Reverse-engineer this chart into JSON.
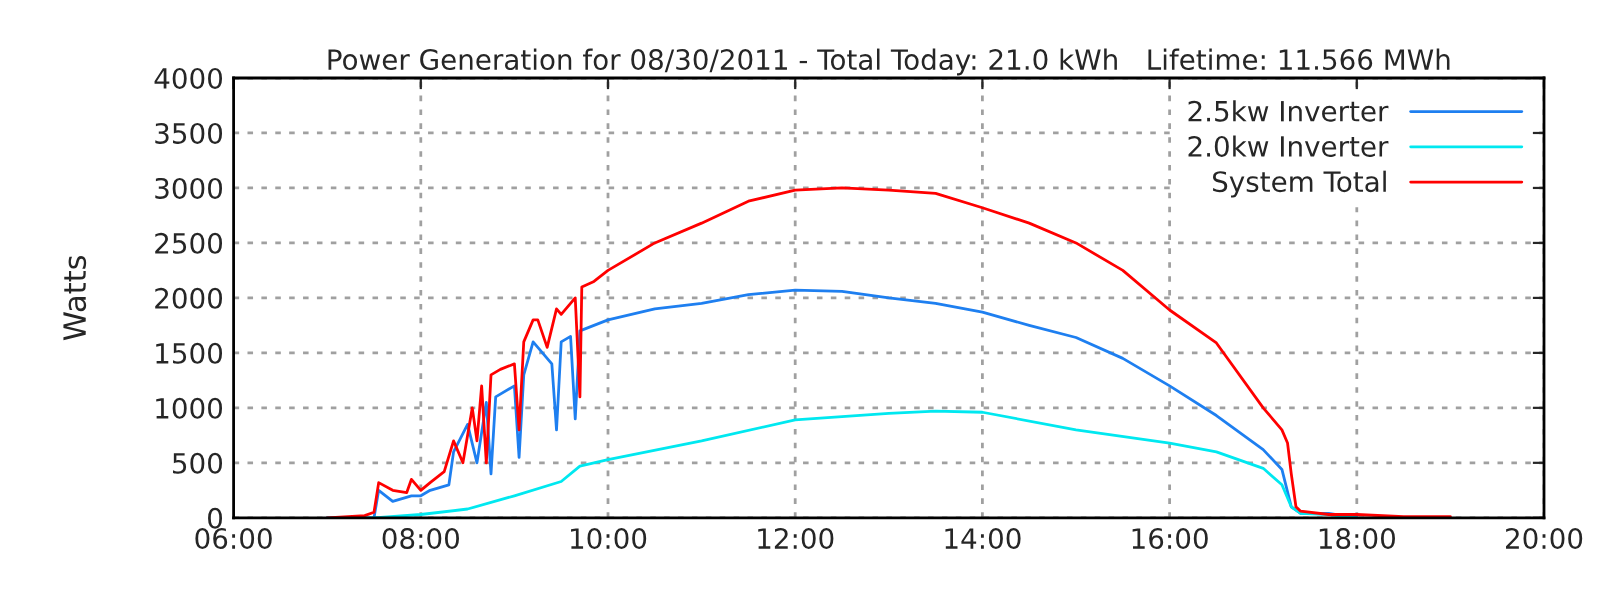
{
  "chart_data": {
    "type": "line",
    "title": "Power Generation for 08/30/2011 - Total Today: 21.0 kWh   Lifetime: 11.566 MWh",
    "ylabel": "Watts",
    "series": [
      {
        "name": "2.5kw Inverter",
        "color": "#1e7ff0",
        "x": [
          7.0,
          7.5,
          7.55,
          7.7,
          7.9,
          8.0,
          8.1,
          8.3,
          8.35,
          8.5,
          8.6,
          8.7,
          8.75,
          8.8,
          9.0,
          9.05,
          9.1,
          9.2,
          9.4,
          9.45,
          9.5,
          9.6,
          9.65,
          9.7,
          10.0,
          10.5,
          11.0,
          11.5,
          12.0,
          12.5,
          13.0,
          13.5,
          14.0,
          14.5,
          15.0,
          15.5,
          16.0,
          16.5,
          17.0,
          17.2,
          17.3,
          17.4,
          17.7,
          18.0
        ],
        "values": [
          0,
          0,
          250,
          150,
          200,
          200,
          250,
          300,
          600,
          850,
          500,
          1050,
          400,
          1100,
          1200,
          550,
          1300,
          1600,
          1400,
          800,
          1600,
          1650,
          900,
          1700,
          1800,
          1900,
          1950,
          2030,
          2070,
          2060,
          2000,
          1950,
          1870,
          1750,
          1640,
          1450,
          1200,
          930,
          620,
          440,
          100,
          40,
          40,
          0
        ]
      },
      {
        "name": "2.0kw Inverter",
        "color": "#00e8f0",
        "x": [
          7.0,
          7.5,
          8.0,
          8.5,
          9.0,
          9.5,
          9.7,
          10.0,
          11.0,
          12.0,
          13.0,
          13.5,
          14.0,
          15.0,
          16.0,
          16.5,
          17.0,
          17.2,
          17.3,
          17.4,
          17.7,
          18.0
        ],
        "values": [
          0,
          0,
          30,
          80,
          200,
          330,
          470,
          530,
          700,
          890,
          950,
          970,
          960,
          800,
          680,
          600,
          450,
          300,
          100,
          40,
          30,
          0
        ]
      },
      {
        "name": "System Total",
        "color": "#ff0000",
        "x": [
          7.0,
          7.4,
          7.5,
          7.55,
          7.7,
          7.85,
          7.9,
          8.0,
          8.1,
          8.25,
          8.35,
          8.45,
          8.55,
          8.6,
          8.65,
          8.7,
          8.75,
          8.85,
          9.0,
          9.05,
          9.1,
          9.2,
          9.25,
          9.35,
          9.45,
          9.5,
          9.6,
          9.65,
          9.7,
          9.72,
          9.85,
          10.0,
          10.5,
          11.0,
          11.5,
          12.0,
          12.5,
          13.0,
          13.5,
          14.0,
          14.5,
          15.0,
          15.5,
          16.0,
          16.5,
          17.0,
          17.2,
          17.26,
          17.3,
          17.35,
          17.4,
          17.7,
          18.0,
          18.5,
          19.0
        ],
        "values": [
          0,
          20,
          50,
          320,
          250,
          230,
          350,
          250,
          320,
          420,
          700,
          500,
          1000,
          700,
          1200,
          500,
          1300,
          1350,
          1400,
          800,
          1600,
          1800,
          1800,
          1550,
          1900,
          1850,
          1950,
          2000,
          1100,
          2100,
          2150,
          2250,
          2500,
          2680,
          2880,
          2980,
          3000,
          2980,
          2950,
          2820,
          2680,
          2500,
          2250,
          1890,
          1590,
          1000,
          800,
          680,
          400,
          100,
          60,
          30,
          30,
          10,
          10
        ]
      }
    ],
    "xlim": [
      6,
      20
    ],
    "xticks": [
      {
        "value": 6,
        "label": "06:00"
      },
      {
        "value": 8,
        "label": "08:00"
      },
      {
        "value": 10,
        "label": "10:00"
      },
      {
        "value": 12,
        "label": "12:00"
      },
      {
        "value": 14,
        "label": "14:00"
      },
      {
        "value": 16,
        "label": "16:00"
      },
      {
        "value": 18,
        "label": "18:00"
      },
      {
        "value": 20,
        "label": "20:00"
      }
    ],
    "ylim": [
      0,
      4000
    ],
    "yticks": [
      0,
      500,
      1000,
      1500,
      2000,
      2500,
      3000,
      3500,
      4000
    ],
    "grid": true,
    "legend": "top right"
  }
}
